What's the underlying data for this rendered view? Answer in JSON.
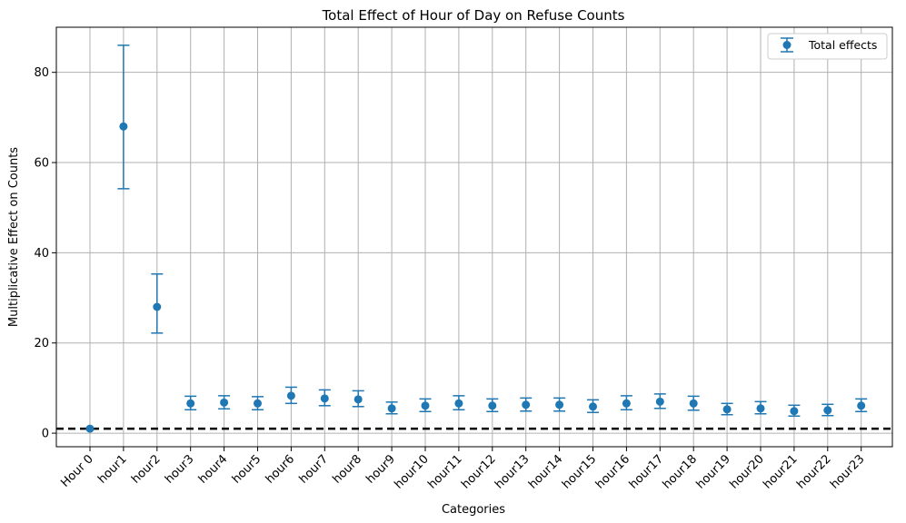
{
  "chart_data": {
    "type": "scatter",
    "title": "Total Effect of Hour of Day on Refuse Counts",
    "xlabel": "Categories",
    "ylabel": "Multiplicative Effect on Counts",
    "categories": [
      "Hour 0",
      "hour1",
      "hour2",
      "hour3",
      "hour4",
      "hour5",
      "hour6",
      "hour7",
      "hour8",
      "hour9",
      "hour10",
      "hour11",
      "hour12",
      "hour13",
      "hour14",
      "hour15",
      "hour16",
      "hour17",
      "hour18",
      "hour19",
      "hour20",
      "hour21",
      "hour22",
      "hour23"
    ],
    "series": [
      {
        "name": "Total effects",
        "color": "#1f77b4",
        "values": [
          1.0,
          68.0,
          28.0,
          6.6,
          6.8,
          6.6,
          8.3,
          7.7,
          7.5,
          5.5,
          6.1,
          6.6,
          6.1,
          6.3,
          6.3,
          5.9,
          6.6,
          7.0,
          6.6,
          5.3,
          5.5,
          4.9,
          5.1,
          6.1
        ],
        "err_low": [
          1.0,
          54.2,
          22.2,
          5.2,
          5.4,
          5.2,
          6.6,
          6.1,
          5.9,
          4.3,
          4.8,
          5.2,
          4.8,
          4.9,
          4.9,
          4.6,
          5.2,
          5.5,
          5.1,
          4.1,
          4.3,
          3.8,
          3.9,
          4.8
        ],
        "err_high": [
          1.0,
          86.0,
          35.3,
          8.2,
          8.3,
          8.1,
          10.2,
          9.6,
          9.4,
          6.9,
          7.6,
          8.3,
          7.6,
          7.8,
          7.8,
          7.4,
          8.3,
          8.7,
          8.2,
          6.6,
          7.0,
          6.2,
          6.4,
          7.6
        ]
      }
    ],
    "reference_line": {
      "y": 1,
      "style": "dashed",
      "color": "#000000"
    },
    "ylim": [
      -3,
      90
    ],
    "yticks": [
      0,
      20,
      40,
      60,
      80
    ],
    "grid": true,
    "legend_position": "top-right"
  }
}
